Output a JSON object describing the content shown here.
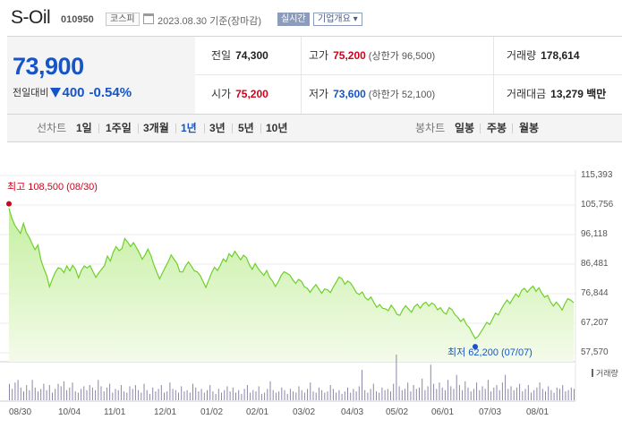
{
  "header": {
    "company": "S-Oil",
    "code": "010950",
    "market": "코스피",
    "date": "2023.08.30 기준(장마감)",
    "realtime_label": "실시간",
    "info_label": "기업개요 ▾"
  },
  "quote": {
    "price": "73,900",
    "change_label": "전일대비",
    "change": "400",
    "change_rate": "-0.54%",
    "prev_label": "전일",
    "prev": "74,300",
    "open_label": "시가",
    "open": "75,200",
    "high_label": "고가",
    "high": "75,200",
    "high_limit_label": "(상한가",
    "high_limit": "96,500)",
    "low_label": "저가",
    "low": "73,600",
    "low_limit_label": "(하한가",
    "low_limit": "52,100)",
    "volume_label": "거래량",
    "volume": "178,614",
    "amount_label": "거래대금",
    "amount": "13,279 백만"
  },
  "tabs": {
    "line_title": "선차트",
    "line": [
      "1일",
      "1주일",
      "3개월",
      "1년",
      "3년",
      "5년",
      "10년"
    ],
    "active": "1년",
    "candle_title": "봉차트",
    "candle": [
      "일봉",
      "주봉",
      "월봉"
    ]
  },
  "chart_data": {
    "type": "area",
    "y_ticks": [
      "115,393",
      "105,756",
      "96,118",
      "86,481",
      "76,844",
      "67,207",
      "57,570"
    ],
    "ylim": [
      57570,
      115393
    ],
    "x_ticks": [
      "08/30",
      "10/04",
      "11/01",
      "12/01",
      "01/02",
      "02/01",
      "03/02",
      "04/03",
      "05/02",
      "06/01",
      "07/03",
      "08/01"
    ],
    "high_annotation": "최고 108,500 (08/30)",
    "low_annotation": "최저 62,200 (07/07)",
    "high_value": 108500,
    "low_value": 62200,
    "volume_label": "거래량",
    "price_series": [
      104700,
      101500,
      99200,
      97800,
      96500,
      99800,
      96800,
      95200,
      93100,
      91200,
      92700,
      88000,
      85200,
      82800,
      79100,
      81600,
      83800,
      85300,
      85000,
      83700,
      85900,
      84300,
      86100,
      84800,
      82000,
      84400,
      85900,
      85200,
      86000,
      84100,
      82200,
      83600,
      84800,
      86000,
      89100,
      87500,
      90400,
      92200,
      90900,
      91500,
      94800,
      93700,
      92200,
      93500,
      91900,
      90200,
      88100,
      89500,
      91400,
      89300,
      86400,
      84000,
      81700,
      83600,
      85500,
      87300,
      89500,
      88100,
      86800,
      84000,
      83900,
      85900,
      87200,
      85800,
      84300,
      84000,
      82800,
      80900,
      78900,
      81300,
      83700,
      85500,
      84400,
      86100,
      88200,
      87300,
      89900,
      88900,
      90700,
      89300,
      87900,
      89400,
      88600,
      86300,
      84800,
      86700,
      85100,
      83900,
      82800,
      84400,
      82200,
      81000,
      79200,
      80700,
      82800,
      84000,
      83500,
      82900,
      81400,
      80200,
      81500,
      80900,
      79100,
      78600,
      77300,
      78700,
      79800,
      78400,
      77000,
      78400,
      78100,
      77200,
      79000,
      80600,
      82300,
      81700,
      79900,
      81000,
      80300,
      78800,
      77100,
      76600,
      77400,
      75600,
      74800,
      75800,
      74000,
      72400,
      73300,
      72100,
      71900,
      71300,
      73100,
      71800,
      70100,
      69800,
      71700,
      72900,
      71800,
      70800,
      72600,
      73400,
      72100,
      73500,
      74100,
      72800,
      73800,
      73200,
      71600,
      72300,
      70800,
      70200,
      72300,
      71600,
      70000,
      69100,
      67800,
      68700,
      66700,
      65800,
      63900,
      62200,
      62900,
      64400,
      65900,
      67500,
      66800,
      68600,
      70500,
      69900,
      71800,
      73400,
      74800,
      73600,
      75200,
      76800,
      75800,
      77900,
      78600,
      77300,
      78500,
      79300,
      77600,
      78800,
      77000,
      75700,
      76300,
      74200,
      72800,
      74100,
      73000,
      71500,
      73600,
      75200,
      74700,
      73900
    ],
    "volume_series": [
      13,
      9,
      14,
      16,
      10,
      7,
      12,
      8,
      16,
      10,
      7,
      9,
      13,
      8,
      12,
      6,
      9,
      13,
      11,
      15,
      8,
      10,
      14,
      7,
      6,
      9,
      11,
      8,
      12,
      10,
      8,
      16,
      11,
      7,
      10,
      13,
      6,
      9,
      8,
      12,
      7,
      6,
      11,
      9,
      12,
      8,
      6,
      13,
      8,
      5,
      10,
      7,
      9,
      12,
      6,
      7,
      14,
      9,
      8,
      6,
      11,
      7,
      8,
      6,
      13,
      10,
      7,
      9,
      6,
      8,
      12,
      7,
      5,
      9,
      6,
      8,
      11,
      7,
      10,
      6,
      8,
      5,
      9,
      12,
      6,
      8,
      7,
      11,
      5,
      6,
      9,
      15,
      8,
      6,
      7,
      10,
      8,
      5,
      9,
      7,
      6,
      11,
      8,
      6,
      9,
      14,
      7,
      6,
      10,
      8,
      6,
      7,
      12,
      9,
      6,
      8,
      5,
      7,
      10,
      6,
      9,
      7,
      11,
      24,
      8,
      6,
      9,
      13,
      7,
      6,
      10,
      8,
      9,
      7,
      13,
      36,
      11,
      8,
      9,
      14,
      7,
      12,
      9,
      10,
      17,
      8,
      11,
      28,
      13,
      9,
      14,
      10,
      8,
      16,
      11,
      9,
      20,
      12,
      8,
      15,
      10,
      7,
      9,
      14,
      8,
      11,
      9,
      16,
      7,
      10,
      12,
      8,
      14,
      20,
      9,
      11,
      8,
      10,
      13,
      7,
      9,
      12,
      6,
      8,
      10,
      14,
      9,
      7,
      11,
      8,
      6,
      10,
      9,
      12,
      7,
      8,
      10,
      9
    ]
  }
}
